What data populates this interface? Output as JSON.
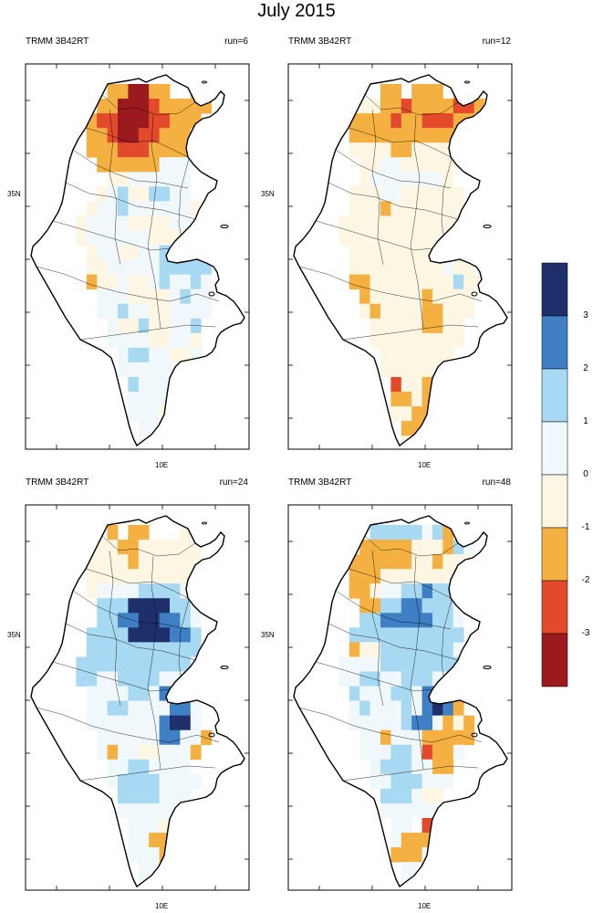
{
  "figure": {
    "title": "July 2015"
  },
  "panels": [
    {
      "left_title": "TRMM 3B42RT",
      "right_title": "run=6",
      "ylabel": "35N",
      "xlabel": "10E"
    },
    {
      "left_title": "TRMM 3B42RT",
      "right_title": "run=12",
      "ylabel": "35N",
      "xlabel": "10E"
    },
    {
      "left_title": "TRMM 3B42RT",
      "right_title": "run=24",
      "ylabel": "35N",
      "xlabel": "10E"
    },
    {
      "left_title": "TRMM 3B42RT",
      "right_title": "run=48",
      "ylabel": "35N",
      "xlabel": "10E"
    }
  ],
  "colorbar": {
    "colors": [
      "#1f2f6b",
      "#3f7fc4",
      "#a8d9f2",
      "#f0f8fc",
      "#fdf6e3",
      "#f5b042",
      "#e34a2c",
      "#9a1a1f"
    ],
    "labels": [
      "3",
      "2",
      "1",
      "0",
      "-1",
      "-2",
      "-3"
    ]
  }
}
